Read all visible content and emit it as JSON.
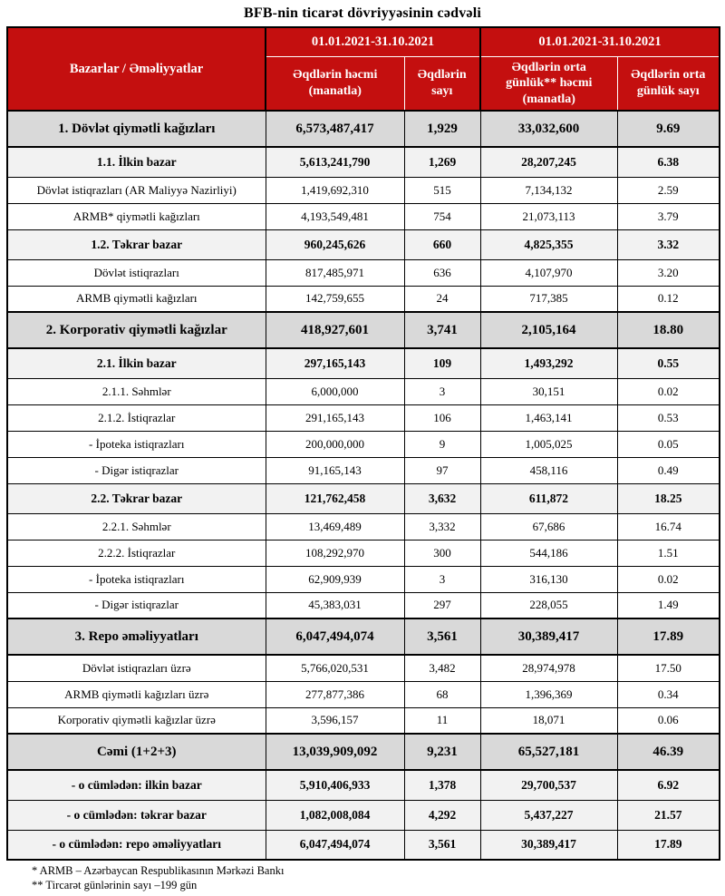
{
  "title": "BFB-nin ticarət dövriyyəsinin cədvəli",
  "colors": {
    "header_bg": "#C40F0F",
    "header_text": "#FFFFFF",
    "section_row_bg": "#D9D9D9",
    "subsection_row_bg": "#F2F2F2",
    "border": "#000000"
  },
  "table": {
    "header": {
      "col_markets": "Bazarlar / Əməliyyatlar",
      "group1_period": "01.01.2021-31.10.2021",
      "group2_period": "01.01.2021-31.10.2021",
      "col_volume": "Əqdlərin həcmi (manatla)",
      "col_count": "Əqdlərin sayı",
      "col_avg_volume": "Əqdlərin orta günlük** həcmi (manatla)",
      "col_avg_count": "Əqdlərin orta günlük sayı"
    },
    "rows": [
      {
        "label": "1. Dövlət qiymətli kağızları",
        "volume": "6,573,487,417",
        "count": "1,929",
        "avg_volume": "33,032,600",
        "avg_count": "9.69",
        "style": "section"
      },
      {
        "label": "1.1. İlkin bazar",
        "volume": "5,613,241,790",
        "count": "1,269",
        "avg_volume": "28,207,245",
        "avg_count": "6.38",
        "style": "subsection"
      },
      {
        "label": "Dövlət istiqrazları (AR Maliyyə Nazirliyi)",
        "volume": "1,419,692,310",
        "count": "515",
        "avg_volume": "7,134,132",
        "avg_count": "2.59",
        "style": "normal"
      },
      {
        "label": "ARMB* qiymətli kağızları",
        "volume": "4,193,549,481",
        "count": "754",
        "avg_volume": "21,073,113",
        "avg_count": "3.79",
        "style": "normal"
      },
      {
        "label": "1.2. Təkrar bazar",
        "volume": "960,245,626",
        "count": "660",
        "avg_volume": "4,825,355",
        "avg_count": "3.32",
        "style": "subsection"
      },
      {
        "label": "Dövlət istiqrazları",
        "volume": "817,485,971",
        "count": "636",
        "avg_volume": "4,107,970",
        "avg_count": "3.20",
        "style": "normal"
      },
      {
        "label": "ARMB qiymətli kağızları",
        "volume": "142,759,655",
        "count": "24",
        "avg_volume": "717,385",
        "avg_count": "0.12",
        "style": "normal"
      },
      {
        "label": "2. Korporativ qiymətli kağızlar",
        "volume": "418,927,601",
        "count": "3,741",
        "avg_volume": "2,105,164",
        "avg_count": "18.80",
        "style": "section"
      },
      {
        "label": "2.1. İlkin bazar",
        "volume": "297,165,143",
        "count": "109",
        "avg_volume": "1,493,292",
        "avg_count": "0.55",
        "style": "subsection"
      },
      {
        "label": "2.1.1. Səhmlər",
        "volume": "6,000,000",
        "count": "3",
        "avg_volume": "30,151",
        "avg_count": "0.02",
        "style": "normal"
      },
      {
        "label": "2.1.2. İstiqrazlar",
        "volume": "291,165,143",
        "count": "106",
        "avg_volume": "1,463,141",
        "avg_count": "0.53",
        "style": "normal"
      },
      {
        "label": "- İpoteka istiqrazları",
        "volume": "200,000,000",
        "count": "9",
        "avg_volume": "1,005,025",
        "avg_count": "0.05",
        "style": "normal"
      },
      {
        "label": "- Digər istiqrazlar",
        "volume": "91,165,143",
        "count": "97",
        "avg_volume": "458,116",
        "avg_count": "0.49",
        "style": "normal"
      },
      {
        "label": "2.2. Təkrar bazar",
        "volume": "121,762,458",
        "count": "3,632",
        "avg_volume": "611,872",
        "avg_count": "18.25",
        "style": "subsection"
      },
      {
        "label": "2.2.1. Səhmlər",
        "volume": "13,469,489",
        "count": "3,332",
        "avg_volume": "67,686",
        "avg_count": "16.74",
        "style": "normal"
      },
      {
        "label": "2.2.2. İstiqrazlar",
        "volume": "108,292,970",
        "count": "300",
        "avg_volume": "544,186",
        "avg_count": "1.51",
        "style": "normal"
      },
      {
        "label": "- İpoteka istiqrazları",
        "volume": "62,909,939",
        "count": "3",
        "avg_volume": "316,130",
        "avg_count": "0.02",
        "style": "normal"
      },
      {
        "label": "- Digər istiqrazlar",
        "volume": "45,383,031",
        "count": "297",
        "avg_volume": "228,055",
        "avg_count": "1.49",
        "style": "normal"
      },
      {
        "label": "3. Repo əməliyyatları",
        "volume": "6,047,494,074",
        "count": "3,561",
        "avg_volume": "30,389,417",
        "avg_count": "17.89",
        "style": "section"
      },
      {
        "label": "Dövlət istiqrazları üzrə",
        "volume": "5,766,020,531",
        "count": "3,482",
        "avg_volume": "28,974,978",
        "avg_count": "17.50",
        "style": "normal"
      },
      {
        "label": "ARMB qiymətli kağızları üzrə",
        "volume": "277,877,386",
        "count": "68",
        "avg_volume": "1,396,369",
        "avg_count": "0.34",
        "style": "normal"
      },
      {
        "label": "Korporativ qiymətli kağızlar üzrə",
        "volume": "3,596,157",
        "count": "11",
        "avg_volume": "18,071",
        "avg_count": "0.06",
        "style": "normal"
      },
      {
        "label": "Cəmi (1+2+3)",
        "volume": "13,039,909,092",
        "count": "9,231",
        "avg_volume": "65,527,181",
        "avg_count": "46.39",
        "style": "section"
      },
      {
        "label": "- o cümlədən: ilkin bazar",
        "volume": "5,910,406,933",
        "count": "1,378",
        "avg_volume": "29,700,537",
        "avg_count": "6.92",
        "style": "subsection"
      },
      {
        "label": "- o cümlədən: təkrar bazar",
        "volume": "1,082,008,084",
        "count": "4,292",
        "avg_volume": "5,437,227",
        "avg_count": "21.57",
        "style": "subsection"
      },
      {
        "label": "- o cümlədən: repo əməliyyatları",
        "volume": "6,047,494,074",
        "count": "3,561",
        "avg_volume": "30,389,417",
        "avg_count": "17.89",
        "style": "subsection"
      }
    ]
  },
  "footnotes": [
    "* ARMB – Azərbaycan Respublikasının Mərkəzi Bankı",
    "** Tircarət günlərinin sayı –199 gün"
  ]
}
